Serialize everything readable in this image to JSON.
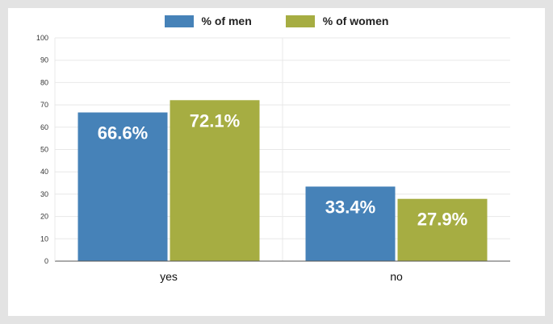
{
  "colors": {
    "men": "#4682b8",
    "women": "#a6ad42",
    "grid": "#e8e8e8",
    "axis": "#555555"
  },
  "chart_data": {
    "type": "bar",
    "categories": [
      "yes",
      "no"
    ],
    "series": [
      {
        "name": "% of men",
        "values": [
          66.6,
          33.4
        ],
        "labels": [
          "66.6%",
          "33.4%"
        ],
        "color_key": "men"
      },
      {
        "name": "% of women",
        "values": [
          72.1,
          27.9
        ],
        "labels": [
          "72.1%",
          "27.9%"
        ],
        "color_key": "women"
      }
    ],
    "yticks": [
      0,
      10,
      20,
      30,
      40,
      50,
      60,
      70,
      80,
      90,
      100
    ],
    "ylim": [
      0,
      100
    ],
    "grid": true,
    "legend": "top-center"
  }
}
